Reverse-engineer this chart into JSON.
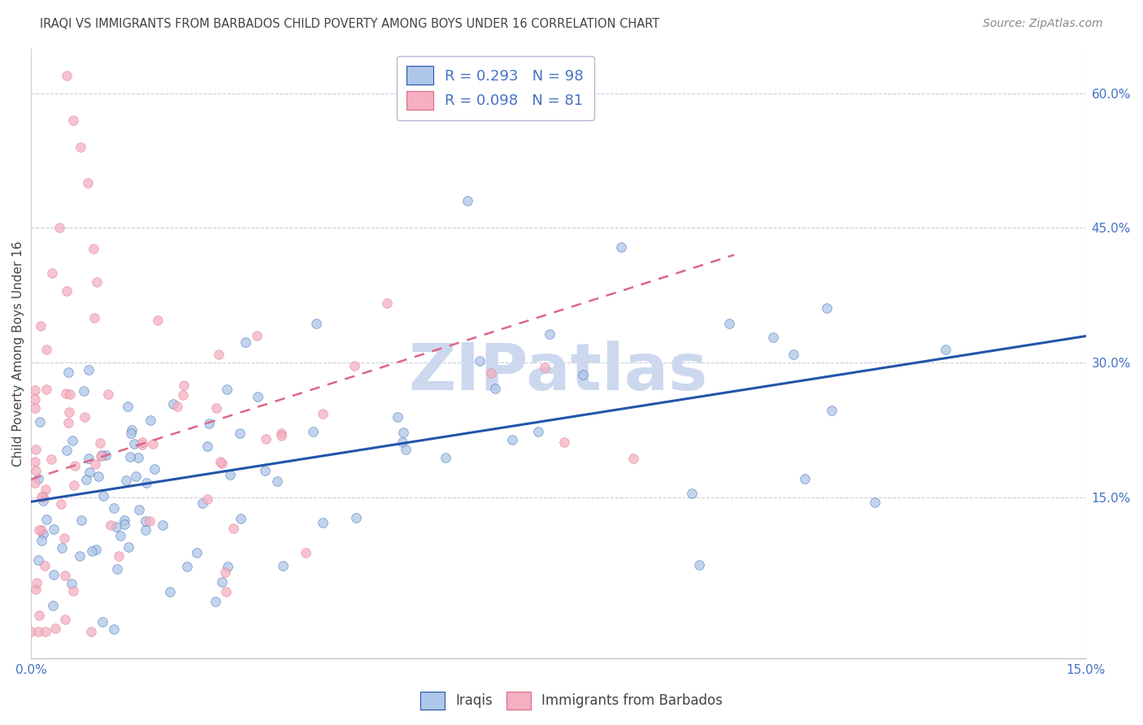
{
  "title": "IRAQI VS IMMIGRANTS FROM BARBADOS CHILD POVERTY AMONG BOYS UNDER 16 CORRELATION CHART",
  "source": "Source: ZipAtlas.com",
  "ylabel": "Child Poverty Among Boys Under 16",
  "xlim": [
    0.0,
    0.15
  ],
  "ylim": [
    -0.03,
    0.65
  ],
  "ytick_vals": [
    0.15,
    0.3,
    0.45,
    0.6
  ],
  "ytick_labels": [
    "15.0%",
    "30.0%",
    "45.0%",
    "60.0%"
  ],
  "xtick_vals": [
    0.0,
    0.15
  ],
  "xtick_labels": [
    "0.0%",
    "15.0%"
  ],
  "legend1_label": "R = 0.293   N = 98",
  "legend2_label": "R = 0.098   N = 81",
  "series1_facecolor": "#aec6e8",
  "series2_facecolor": "#f4afc0",
  "line1_color": "#2255aa",
  "line2_color": "#dd6688",
  "watermark": "ZIPatlas",
  "watermark_color": "#ccd8ee",
  "background_color": "#ffffff",
  "grid_color": "#ccccdd",
  "title_color": "#444444",
  "axis_label_color": "#4472c4",
  "legend_text_color": "#4472c4"
}
